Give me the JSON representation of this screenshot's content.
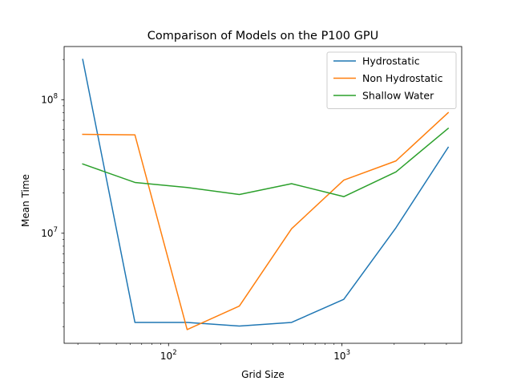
{
  "chart_data": {
    "type": "line",
    "title": "Comparison of Models on the P100 GPU",
    "xlabel": "Grid Size",
    "ylabel": "Mean Time",
    "xscale": "log",
    "yscale": "log",
    "xlim": [
      25,
      4900
    ],
    "ylim": [
      1500000,
      250000000
    ],
    "x_ticks": [
      {
        "value": 100,
        "base": "10",
        "exp": "2"
      },
      {
        "value": 1000,
        "base": "10",
        "exp": "3"
      }
    ],
    "y_ticks": [
      {
        "value": 10000000,
        "base": "10",
        "exp": "7"
      },
      {
        "value": 100000000,
        "base": "10",
        "exp": "8"
      }
    ],
    "grid": false,
    "legend_position": "top-right",
    "x": [
      32,
      64,
      128,
      256,
      512,
      1024,
      2048,
      4096
    ],
    "series": [
      {
        "name": "Hydrostatic",
        "color": "#1f77b4",
        "values": [
          200000000,
          2150000,
          2150000,
          2020000,
          2150000,
          3200000,
          11000000,
          44000000
        ]
      },
      {
        "name": "Non Hydrostatic",
        "color": "#ff7f0e",
        "values": [
          55000000,
          54500000,
          1900000,
          2850000,
          10800000,
          25000000,
          34800000,
          80000000
        ]
      },
      {
        "name": "Shallow Water",
        "color": "#2ca02c",
        "values": [
          33000000,
          24000000,
          22000000,
          19500000,
          23500000,
          18800000,
          28800000,
          61000000
        ]
      }
    ]
  }
}
